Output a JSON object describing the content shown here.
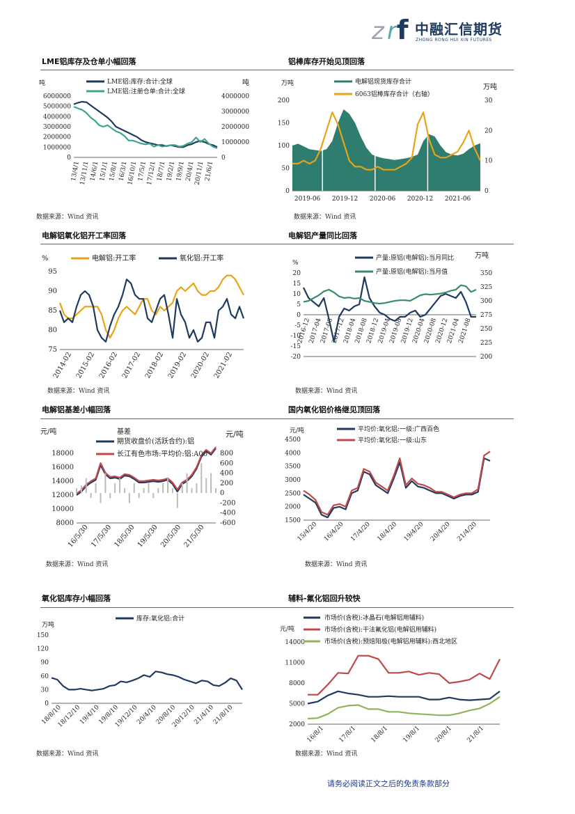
{
  "header": {
    "logo_text": "中融汇信期货",
    "logo_sub": "ZHONG RONG HUI XIN FUTURES",
    "logo_colors": {
      "navy": "#1e3a5f",
      "teal": "#5aa8a8",
      "grey": "#9aa5b1"
    }
  },
  "panels": [
    {
      "title": "LME铝库存及仓单小幅回落",
      "source": "数据来源：Wind 资讯"
    },
    {
      "title": "铝棒库存开始见顶回落",
      "source": "数据来源：Wind 资讯"
    },
    {
      "title": "电解铝氧化铝开工率回落",
      "source": "数据来源：Wind 资讯"
    },
    {
      "title": "电解铝产量同比回落",
      "source": "数据来源：Wind 资讯"
    },
    {
      "title": "电解铝基差小幅回落",
      "source": "数据来源：Wind 资讯"
    },
    {
      "title": "国内氧化铝价格继见顶回落",
      "source": "数据来源：Wind 资讯"
    },
    {
      "title": "氧化铝库存小幅回落",
      "source": "数据来源：Wind 资讯"
    },
    {
      "title": "辅料-氟化铝回升较快",
      "source": "数据来源：Wind 资讯"
    }
  ],
  "footer": "请务必阅读正文之后的免责条款部分",
  "chart_data": [
    {
      "type": "line",
      "x_ticks": [
        "13/4/1",
        "13/11/1",
        "14/6/1",
        "15/1/1",
        "15/8/1",
        "16/3/1",
        "16/10/1",
        "17/5/1",
        "17/12/1",
        "18/7/1",
        "19/2/1",
        "19/9/1",
        "20/4/1",
        "20/11/1",
        "21/6/1"
      ],
      "yunit_left": "吨",
      "yunit_right": "吨",
      "y_left_ticks": [
        "6000000",
        "5000000",
        "4000000",
        "3000000",
        "2000000",
        "1000000",
        "0"
      ],
      "y_right_ticks": [
        "4000000",
        "3000000",
        "2000000",
        "1000000",
        "0"
      ],
      "ylim_left": [
        0,
        6000000
      ],
      "ylim_right": [
        0,
        4000000
      ],
      "series": [
        {
          "name": "LME铝:库存:合计:全球",
          "axis": "left",
          "color": "#1e3a5f",
          "values": [
            5200000,
            5350000,
            5450000,
            5400000,
            5100000,
            4800000,
            4500000,
            4200000,
            3900000,
            3500000,
            3000000,
            2800000,
            2600000,
            2400000,
            2200000,
            2000000,
            1700000,
            1500000,
            1400000,
            1300000,
            1200000,
            1200000,
            1100000,
            1200000,
            1100000,
            1000000,
            1000000,
            1200000,
            1300000,
            1500000,
            1600000,
            1500000,
            1300000,
            1200000,
            1000000
          ]
        },
        {
          "name": "LME铝:注册仓单:合计:全球",
          "axis": "right",
          "color": "#3da58a",
          "values": [
            3300000,
            3200000,
            3100000,
            2900000,
            2600000,
            2400000,
            2100000,
            2000000,
            2100000,
            1900000,
            1700000,
            1600000,
            1400000,
            1100000,
            1100000,
            1000000,
            900000,
            850000,
            900000,
            700000,
            800000,
            700000,
            750000,
            800000,
            800000,
            700000,
            750000,
            900000,
            1000000,
            1300000,
            1000000,
            1200000,
            900000,
            700000,
            600000
          ]
        }
      ]
    },
    {
      "type": "area",
      "x_ticks": [
        "2019-06",
        "2019-12",
        "2020-06",
        "2020-12",
        "2021-06"
      ],
      "yunit_left": "万吨",
      "yunit_right": "万吨",
      "y_left_ticks": [
        "200",
        "150",
        "100",
        "50",
        "0"
      ],
      "y_right_ticks": [
        "30",
        "20",
        "10",
        "0"
      ],
      "ylim_left": [
        0,
        200
      ],
      "ylim_right": [
        0,
        30
      ],
      "series": [
        {
          "name": "电解铝现货库存合计",
          "axis": "left",
          "color": "#2e7d6e",
          "values": [
            100,
            104,
            98,
            92,
            90,
            88,
            92,
            110,
            150,
            180,
            170,
            150,
            120,
            95,
            80,
            75,
            72,
            70,
            68,
            70,
            72,
            75,
            80,
            110,
            125,
            120,
            100,
            85,
            80,
            78,
            82,
            92,
            100,
            105
          ]
        },
        {
          "name": "6063铝棒库存合计（右轴）",
          "axis": "right",
          "color": "#e8a317",
          "values": [
            9,
            9,
            10,
            9,
            10,
            14,
            20,
            26,
            22,
            16,
            10,
            8,
            8,
            7,
            7,
            8,
            7,
            7,
            7,
            8,
            9,
            11,
            22,
            26,
            17,
            12,
            11,
            11,
            12,
            13,
            16,
            20,
            14,
            10
          ]
        }
      ]
    },
    {
      "type": "line",
      "x_ticks": [
        "2014-02",
        "2015-02",
        "2016-02",
        "2017-02",
        "2018-02",
        "2019-02",
        "2020-02",
        "2021-02"
      ],
      "yunit_left": "%",
      "y_left_ticks": [
        "95",
        "90",
        "85",
        "80",
        "75"
      ],
      "ylim_left": [
        75,
        95
      ],
      "series": [
        {
          "name": "电解铝:开工率",
          "color": "#e8a317",
          "values": [
            87,
            84,
            83,
            83,
            84,
            85,
            86,
            86,
            86,
            86,
            84,
            80,
            78,
            80,
            83,
            85,
            86,
            85,
            84,
            86,
            88,
            88,
            85,
            84,
            86,
            85,
            86,
            87,
            90,
            91,
            90,
            91,
            92,
            90,
            89,
            89,
            90,
            90,
            91,
            93,
            94,
            94,
            93,
            91,
            89
          ]
        },
        {
          "name": "氧化铝:开工率",
          "color": "#1e3a5f",
          "values": [
            85,
            82,
            83,
            82,
            86,
            89,
            90,
            89,
            86,
            80,
            78,
            77,
            81,
            84,
            86,
            89,
            93,
            92,
            89,
            88,
            88,
            83,
            82,
            85,
            88,
            89,
            84,
            78,
            88,
            84,
            82,
            78,
            80,
            77,
            78,
            82,
            82,
            78,
            85,
            86,
            88,
            84,
            83,
            86,
            83
          ]
        }
      ]
    },
    {
      "type": "line",
      "x_ticks": [
        "2016-12",
        "2017-04",
        "2017-08",
        "2017-12",
        "2018-04",
        "2018-08",
        "2018-12",
        "2019-04",
        "2019-08",
        "2019-12",
        "2020-04",
        "2020-08",
        "2020-12",
        "2021-04",
        "2021-08"
      ],
      "yunit_left": "%",
      "yunit_right": "万吨",
      "y_left_ticks": [
        "20",
        "15",
        "10",
        "5",
        "0",
        "-5",
        "-10",
        "-15",
        "-20"
      ],
      "y_right_ticks": [
        "350",
        "325",
        "300",
        "275",
        "250",
        "225",
        "200"
      ],
      "ylim_left": [
        -20,
        20
      ],
      "ylim_right": [
        200,
        350
      ],
      "series": [
        {
          "name": "产量:原铝(电解铝):当月同比",
          "axis": "left",
          "color": "#1e3a5f",
          "values": [
            13,
            8,
            6,
            4,
            8,
            -2,
            -13,
            -1,
            3,
            2,
            4,
            5,
            18,
            8,
            4,
            1,
            0,
            -2,
            -3,
            -1,
            -1,
            1,
            2,
            -1,
            0,
            3,
            6,
            9,
            10,
            9,
            8,
            11,
            6,
            -1,
            -1
          ]
        },
        {
          "name": "产量:原铝(电解铝):当月值",
          "axis": "right",
          "color": "#3a8a6e",
          "values": [
            298,
            300,
            305,
            310,
            317,
            320,
            315,
            308,
            305,
            306,
            304,
            305,
            300,
            298,
            296,
            295,
            296,
            298,
            300,
            301,
            301,
            300,
            305,
            310,
            312,
            311,
            312,
            313,
            315,
            318,
            320,
            328,
            326,
            316,
            320
          ]
        }
      ]
    },
    {
      "type": "line",
      "x_ticks": [
        "16/5/30",
        "17/5/30",
        "18/5/30",
        "19/5/30",
        "20/5/30",
        "21/5/30"
      ],
      "yunit_left": "元/吨",
      "yunit_right": "元/吨",
      "right_label": "基差",
      "y_left_ticks": [
        "18000",
        "16000",
        "14000",
        "12000",
        "10000",
        "8000"
      ],
      "y_right_ticks": [
        "800",
        "600",
        "400",
        "200",
        "0",
        "-200",
        "-400",
        "-600"
      ],
      "ylim_left": [
        8000,
        18000
      ],
      "ylim_right": [
        -600,
        800
      ],
      "series": [
        {
          "name": "期货收盘价(活跃合约):铝",
          "axis": "left",
          "color": "#1e3a5f",
          "values": [
            12000,
            12500,
            13300,
            13800,
            14200,
            16300,
            15000,
            14400,
            14500,
            14300,
            14800,
            14700,
            14300,
            13800,
            13800,
            13900,
            14000,
            13900,
            14000,
            14200,
            13600,
            12500,
            13600,
            14000,
            14700,
            15800,
            17500,
            18300,
            17800,
            18700
          ]
        },
        {
          "name": "长江有色市场:平均价:铝:A00",
          "axis": "left",
          "color": "#c04848",
          "values": [
            12200,
            12700,
            13500,
            14000,
            14400,
            16600,
            15200,
            14600,
            14700,
            14500,
            15000,
            14900,
            14500,
            14000,
            14000,
            14100,
            14200,
            14100,
            14200,
            14400,
            13800,
            12800,
            13800,
            14200,
            14900,
            16000,
            17700,
            18500,
            18000,
            18900
          ]
        },
        {
          "name": "基差",
          "axis": "right",
          "color": "#bbbbbb",
          "values": [
            100,
            150,
            300,
            -100,
            200,
            -200,
            400,
            -100,
            200,
            300,
            100,
            -200,
            200,
            -100,
            100,
            200,
            -100,
            100,
            200,
            300,
            100,
            -300,
            200,
            400,
            100,
            200,
            600,
            300,
            400,
            100
          ]
        }
      ]
    },
    {
      "type": "line",
      "x_ticks": [
        "15/4/20",
        "16/4/20",
        "17/4/20",
        "18/4/20",
        "19/4/20",
        "20/4/20",
        "21/4/20"
      ],
      "yunit_left": "元/吨",
      "y_left_ticks": [
        "4500",
        "4000",
        "3500",
        "3000",
        "2500",
        "2000",
        "1500"
      ],
      "ylim_left": [
        1500,
        4500
      ],
      "series": [
        {
          "name": "平均价:氧化铝:一级:广西百色",
          "color": "#1e3a5f",
          "values": [
            2450,
            2300,
            2150,
            1700,
            1600,
            1950,
            2000,
            1900,
            2500,
            2600,
            3300,
            3200,
            2800,
            2650,
            2500,
            3050,
            3650,
            2700,
            2950,
            2750,
            2700,
            2600,
            2500,
            2500,
            2400,
            2300,
            2400,
            2450,
            2450,
            2550,
            3800,
            3700
          ]
        },
        {
          "name": "平均价:氧化铝:一级:山东",
          "color": "#c04848",
          "values": [
            2600,
            2450,
            2250,
            1800,
            1700,
            2050,
            2100,
            2000,
            2600,
            2700,
            3400,
            3300,
            2900,
            2750,
            2600,
            3150,
            3800,
            2800,
            3050,
            2850,
            2800,
            2700,
            2550,
            2550,
            2450,
            2350,
            2450,
            2500,
            2500,
            2650,
            3900,
            4050
          ]
        }
      ]
    },
    {
      "type": "line",
      "x_ticks": [
        "18/8/10",
        "18/12/10",
        "19/4/10",
        "19/8/10",
        "19/12/10",
        "20/4/10",
        "20/8/10",
        "20/12/10",
        "21/4/10",
        "21/8/10"
      ],
      "yunit_left": "万吨",
      "y_left_ticks": [
        "150",
        "120",
        "90",
        "60",
        "30",
        "0"
      ],
      "ylim_left": [
        0,
        150
      ],
      "series": [
        {
          "name": "库存:氧化铝:合计",
          "color": "#1e3a5f",
          "values": [
            56,
            52,
            38,
            30,
            30,
            32,
            30,
            28,
            30,
            32,
            38,
            40,
            48,
            46,
            50,
            55,
            62,
            58,
            70,
            68,
            64,
            62,
            58,
            52,
            48,
            44,
            50,
            48,
            40,
            38,
            45,
            55,
            50,
            30
          ]
        }
      ]
    },
    {
      "type": "line",
      "x_ticks": [
        "16/8/1",
        "17/8/1",
        "18/8/1",
        "19/8/1",
        "20/8/1",
        "21/8/1"
      ],
      "yunit_left": "元/吨",
      "y_left_ticks": [
        "14000",
        "11000",
        "8000",
        "5000",
        "2000"
      ],
      "ylim_left": [
        2000,
        14000
      ],
      "series": [
        {
          "name": "市场价(含税):冰晶石(电解铝用辅料)",
          "color": "#1e3a5f",
          "values": [
            5000,
            5300,
            6200,
            6800,
            6500,
            6300,
            6000,
            6000,
            6100,
            6000,
            6000,
            6000,
            5600,
            5600,
            5900,
            5600,
            5500,
            5600,
            5700,
            6800
          ]
        },
        {
          "name": "市场价(含税):干法氟化铝(电解铝用辅料)",
          "color": "#c04848",
          "values": [
            6300,
            6300,
            7800,
            9500,
            9400,
            12000,
            12000,
            11500,
            9500,
            9500,
            9700,
            9200,
            9500,
            9300,
            8000,
            8200,
            8500,
            9400,
            8600,
            11500
          ]
        },
        {
          "name": "市场价(含税):预焙阳极(电解铝用辅料):西北地区",
          "color": "#8fb35a",
          "values": [
            2800,
            2900,
            3500,
            4400,
            4700,
            4800,
            4200,
            4200,
            3800,
            3800,
            3600,
            3500,
            3400,
            3300,
            3300,
            3600,
            4000,
            4300,
            5000,
            6000
          ]
        }
      ]
    }
  ]
}
